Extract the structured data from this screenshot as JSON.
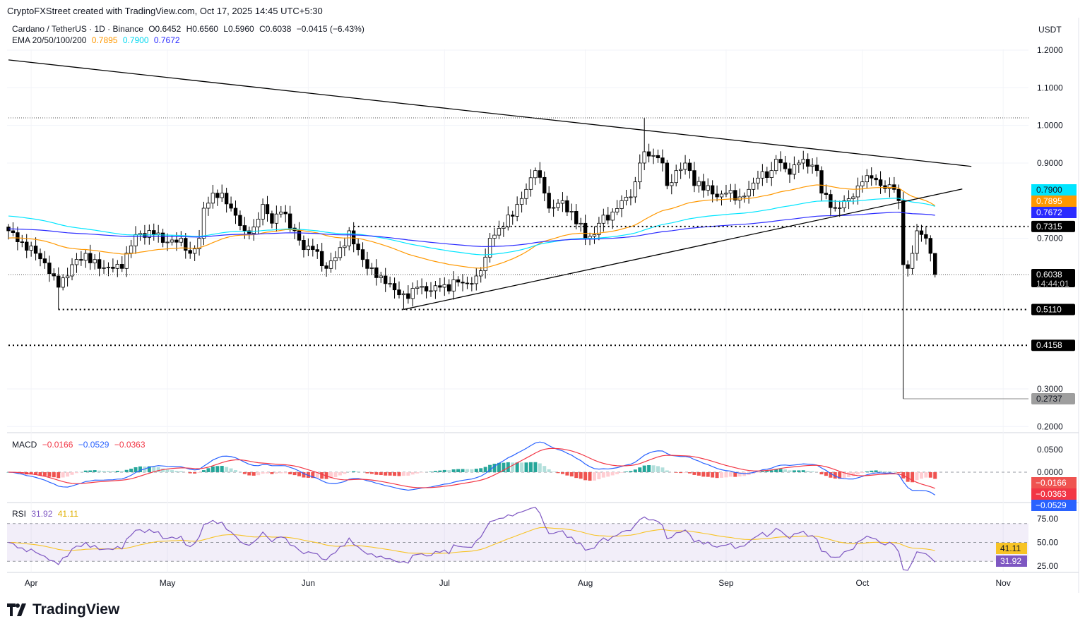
{
  "header": {
    "credit": "CryptoFXStreet created with TradingView.com, Oct 17, 2025 14:45 UTC+5:30"
  },
  "legend": {
    "symbol": "Cardano / TetherUS · 1D · Binance",
    "open": "O0.6452",
    "high": "H0.6560",
    "low": "L0.5960",
    "close": "C0.6038",
    "change": "−0.0415 (−6.43%)",
    "ema_label": "EMA 20/50/100/200",
    "ema_values": [
      "0.7895",
      "0.7900",
      "0.7672"
    ]
  },
  "currency": "USDT",
  "colors": {
    "ema_orange": "#ff9800",
    "ema_cyan": "#00e5ff",
    "ema_blue": "#2b2bff",
    "macd": "#2962ff",
    "signal": "#f23645",
    "hist_up": "#26a69a",
    "hist_down": "#ef5350",
    "rsi": "#7e57c2",
    "rsi_ma": "#f7c325"
  },
  "macd_legend": {
    "label": "MACD",
    "hist": "−0.0166",
    "macd": "−0.0529",
    "signal": "−0.0363"
  },
  "rsi_legend": {
    "label": "RSI",
    "rsi": "31.92",
    "ma": "41.11"
  },
  "brand": "TradingView",
  "chart_data": {
    "type": "candlestick",
    "start_date": "2025-03-27",
    "ylim": [
      0.2,
      1.25
    ],
    "y_ticks": [
      "1.2000",
      "1.1000",
      "1.0000",
      "0.9000",
      "0.7000",
      "0.3000",
      "0.2000"
    ],
    "x_labels": [
      {
        "label": "Apr",
        "day": 5
      },
      {
        "label": "May",
        "day": 35
      },
      {
        "label": "Jun",
        "day": 66
      },
      {
        "label": "Jul",
        "day": 96
      },
      {
        "label": "Aug",
        "day": 127
      },
      {
        "label": "Sep",
        "day": 158
      },
      {
        "label": "Oct",
        "day": 188
      },
      {
        "label": "Nov",
        "day": 219
      }
    ],
    "close_keypoints": [
      [
        0,
        0.72
      ],
      [
        3,
        0.69
      ],
      [
        6,
        0.66
      ],
      [
        10,
        0.6
      ],
      [
        11,
        0.57
      ],
      [
        13,
        0.6
      ],
      [
        14,
        0.63
      ],
      [
        17,
        0.66
      ],
      [
        20,
        0.62
      ],
      [
        23,
        0.62
      ],
      [
        25,
        0.62
      ],
      [
        27,
        0.68
      ],
      [
        28,
        0.71
      ],
      [
        32,
        0.71
      ],
      [
        35,
        0.69
      ],
      [
        38,
        0.7
      ],
      [
        40,
        0.66
      ],
      [
        42,
        0.7
      ],
      [
        43,
        0.78
      ],
      [
        45,
        0.82
      ],
      [
        47,
        0.82
      ],
      [
        49,
        0.78
      ],
      [
        52,
        0.72
      ],
      [
        54,
        0.73
      ],
      [
        56,
        0.79
      ],
      [
        58,
        0.74
      ],
      [
        60,
        0.77
      ],
      [
        63,
        0.72
      ],
      [
        65,
        0.67
      ],
      [
        67,
        0.67
      ],
      [
        70,
        0.62
      ],
      [
        71,
        0.64
      ],
      [
        74,
        0.68
      ],
      [
        75,
        0.72
      ],
      [
        77,
        0.67
      ],
      [
        79,
        0.62
      ],
      [
        82,
        0.6
      ],
      [
        84,
        0.58
      ],
      [
        86,
        0.55
      ],
      [
        88,
        0.54
      ],
      [
        90,
        0.57
      ],
      [
        92,
        0.56
      ],
      [
        95,
        0.57
      ],
      [
        97,
        0.56
      ],
      [
        98,
        0.59
      ],
      [
        101,
        0.58
      ],
      [
        103,
        0.6
      ],
      [
        105,
        0.65
      ],
      [
        106,
        0.7
      ],
      [
        109,
        0.73
      ],
      [
        112,
        0.79
      ],
      [
        114,
        0.83
      ],
      [
        116,
        0.88
      ],
      [
        118,
        0.82
      ],
      [
        119,
        0.78
      ],
      [
        122,
        0.8
      ],
      [
        123,
        0.77
      ],
      [
        126,
        0.74
      ],
      [
        127,
        0.7
      ],
      [
        129,
        0.71
      ],
      [
        130,
        0.74
      ],
      [
        133,
        0.77
      ],
      [
        135,
        0.8
      ],
      [
        137,
        0.81
      ],
      [
        138,
        0.85
      ],
      [
        139,
        0.9
      ],
      [
        140,
        0.93
      ],
      [
        142,
        0.92
      ],
      [
        144,
        0.9
      ],
      [
        145,
        0.84
      ],
      [
        147,
        0.88
      ],
      [
        149,
        0.9
      ],
      [
        150,
        0.88
      ],
      [
        151,
        0.84
      ],
      [
        154,
        0.84
      ],
      [
        156,
        0.81
      ],
      [
        158,
        0.82
      ],
      [
        161,
        0.81
      ],
      [
        163,
        0.83
      ],
      [
        165,
        0.86
      ],
      [
        168,
        0.88
      ],
      [
        169,
        0.91
      ],
      [
        172,
        0.87
      ],
      [
        174,
        0.9
      ],
      [
        175,
        0.91
      ],
      [
        178,
        0.88
      ],
      [
        179,
        0.82
      ],
      [
        182,
        0.78
      ],
      [
        184,
        0.8
      ],
      [
        186,
        0.81
      ],
      [
        188,
        0.85
      ],
      [
        190,
        0.86
      ],
      [
        192,
        0.84
      ],
      [
        195,
        0.83
      ],
      [
        196,
        0.8
      ],
      [
        197,
        0.63
      ],
      [
        198,
        0.62
      ],
      [
        199,
        0.66
      ],
      [
        200,
        0.72
      ],
      [
        201,
        0.71
      ],
      [
        202,
        0.7
      ],
      [
        203,
        0.66
      ],
      [
        204,
        0.6038
      ]
    ],
    "special_wicks": [
      {
        "day": 11,
        "low": 0.511
      },
      {
        "day": 87,
        "low": 0.511
      },
      {
        "day": 140,
        "high": 1.02
      },
      {
        "day": 197,
        "low": 0.2737
      },
      {
        "day": 204,
        "high": 0.656,
        "low": 0.596
      }
    ],
    "ema_series": [
      {
        "name": "EMA 50",
        "color_key": "ema_orange",
        "period": 50,
        "seed": 0.7,
        "last": "0.7895"
      },
      {
        "name": "EMA 100",
        "color_key": "ema_cyan",
        "period": 100,
        "seed": 0.76,
        "last": "0.7900"
      },
      {
        "name": "EMA 200",
        "color_key": "ema_blue",
        "period": 200,
        "seed": 0.725,
        "last": "0.7672"
      }
    ],
    "trendlines": [
      {
        "name": "descending-resistance",
        "from": [
          0,
          1.174
        ],
        "to": [
          212,
          0.891
        ]
      },
      {
        "name": "ascending-support",
        "from": [
          87,
          0.511
        ],
        "to": [
          210,
          0.831
        ]
      }
    ],
    "levels": [
      {
        "price": 1.02,
        "from_day": 0,
        "style": "fine-dotted",
        "label": ""
      },
      {
        "price": 0.7315,
        "from_day": 76,
        "style": "dotted",
        "label": "0.7315"
      },
      {
        "price": 0.6038,
        "from_day": 0,
        "style": "fine-dotted",
        "label": "0.6038",
        "sub": "14:44:01"
      },
      {
        "price": 0.511,
        "from_day": 11,
        "style": "dotted",
        "label": "0.5110"
      },
      {
        "price": 0.4158,
        "from_day": 0,
        "style": "dotted",
        "label": "0.4158"
      },
      {
        "price": 0.2737,
        "from_day": 197,
        "style": "solid-grey",
        "label": "0.2737"
      }
    ],
    "macd": {
      "ticks": [
        "0.0500",
        "0.0000"
      ],
      "last_labels": [
        "−0.0166",
        "−0.0363",
        "−0.0529"
      ]
    },
    "rsi": {
      "ticks": [
        "75.00",
        "50.00",
        "25.00"
      ],
      "last_labels": [
        "41.11",
        "31.92"
      ],
      "upper": 70,
      "lower": 30
    }
  }
}
